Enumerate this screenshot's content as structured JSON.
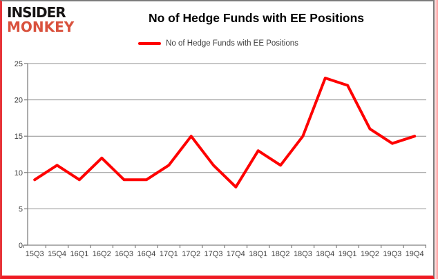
{
  "logo": {
    "line1": "INSIDER",
    "line2": "MONKEY"
  },
  "header": {
    "title": "No of Hedge Funds with EE Positions"
  },
  "legend": {
    "label": "No of Hedge Funds with EE Positions",
    "swatch_color": "#fe0000"
  },
  "chart_data": {
    "type": "line",
    "title": "No of Hedge Funds with EE Positions",
    "series": [
      {
        "name": "No of Hedge Funds with EE Positions",
        "values": [
          9,
          11,
          9,
          12,
          9,
          9,
          11,
          15,
          11,
          8,
          13,
          11,
          15,
          23,
          22,
          16,
          14,
          15
        ]
      }
    ],
    "categories": [
      "15Q3",
      "15Q4",
      "16Q1",
      "16Q2",
      "16Q3",
      "16Q4",
      "17Q1",
      "17Q2",
      "17Q3",
      "17Q4",
      "18Q1",
      "18Q2",
      "18Q3",
      "18Q4",
      "19Q1",
      "19Q2",
      "19Q3",
      "19Q4"
    ],
    "xlabel": "",
    "ylabel": "",
    "ylim": [
      0,
      25
    ],
    "yticks": [
      0,
      5,
      10,
      15,
      20,
      25
    ],
    "grid": true,
    "legend_position": "top",
    "line_color": "#fe0000",
    "gridline_color": "#8f8f8f",
    "axis_color": "#7f7f7f",
    "tick_label_color": "#3d3d3d"
  },
  "frame": {
    "left_border": "#e73439",
    "bottom_border": "#ee1b23",
    "gray_border": "#7b7b7b"
  }
}
